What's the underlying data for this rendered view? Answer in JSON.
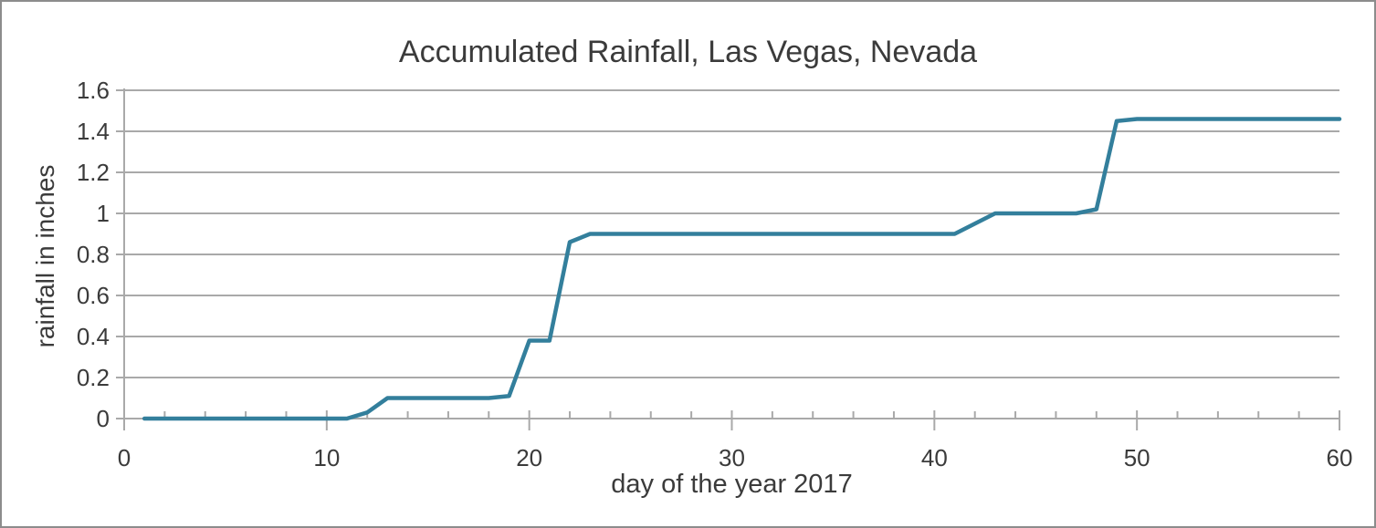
{
  "figure": {
    "title": "Accumulated Rainfall, Las Vegas, Nevada",
    "xlabel": "day of the year 2017",
    "ylabel": "rainfall in inches"
  },
  "colors": {
    "line": "#337f9c",
    "grid": "#a9a9a9",
    "axis": "#a9a9a9",
    "tick": "#a9a9a9",
    "text": "#3b3b3b",
    "border": "#8c8c8c",
    "background": "#ffffff"
  },
  "chart_data": {
    "type": "line",
    "title": "Accumulated Rainfall, Las Vegas, Nevada",
    "xlabel": "day of the year 2017",
    "ylabel": "rainfall in inches",
    "xlim": [
      0,
      60
    ],
    "ylim": [
      0,
      1.6
    ],
    "x_major_ticks": [
      0,
      10,
      20,
      30,
      40,
      50,
      60
    ],
    "x_minor_tick_step": 2,
    "y_ticks": [
      0,
      0.2,
      0.4,
      0.6,
      0.8,
      1.0,
      1.2,
      1.4,
      1.6
    ],
    "y_tick_labels": [
      "0",
      "0.2",
      "0.4",
      "0.6",
      "0.8",
      "1",
      "1.2",
      "1.4",
      "1.6"
    ],
    "grid": "horizontal-only",
    "legend": "none",
    "series": [
      {
        "name": "accumulated rainfall",
        "color": "#337f9c",
        "x": [
          1,
          2,
          3,
          4,
          5,
          6,
          7,
          8,
          9,
          10,
          11,
          12,
          13,
          14,
          15,
          16,
          17,
          18,
          19,
          20,
          21,
          22,
          23,
          24,
          25,
          26,
          27,
          28,
          29,
          30,
          31,
          32,
          33,
          34,
          35,
          36,
          37,
          38,
          39,
          40,
          41,
          42,
          43,
          44,
          45,
          46,
          47,
          48,
          49,
          50,
          51,
          52,
          53,
          54,
          55,
          56,
          57,
          58,
          59,
          60
        ],
        "y": [
          0,
          0,
          0,
          0,
          0,
          0,
          0,
          0,
          0,
          0,
          0,
          0.03,
          0.1,
          0.1,
          0.1,
          0.1,
          0.1,
          0.1,
          0.11,
          0.38,
          0.38,
          0.86,
          0.9,
          0.9,
          0.9,
          0.9,
          0.9,
          0.9,
          0.9,
          0.9,
          0.9,
          0.9,
          0.9,
          0.9,
          0.9,
          0.9,
          0.9,
          0.9,
          0.9,
          0.9,
          0.9,
          0.95,
          1.0,
          1.0,
          1.0,
          1.0,
          1.0,
          1.02,
          1.45,
          1.46,
          1.46,
          1.46,
          1.46,
          1.46,
          1.46,
          1.46,
          1.46,
          1.46,
          1.46,
          1.46
        ]
      }
    ]
  }
}
